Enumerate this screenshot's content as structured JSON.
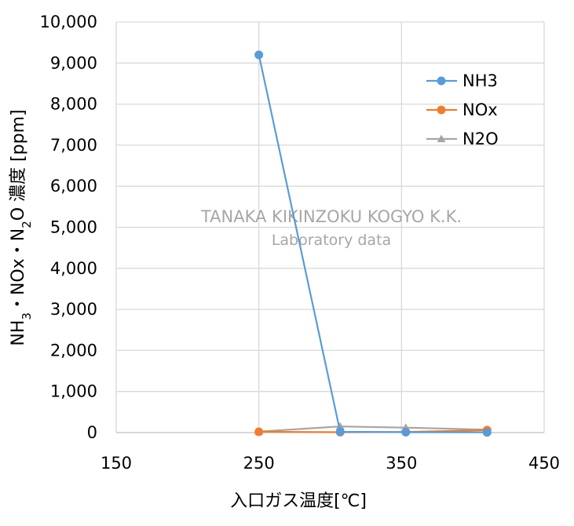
{
  "chart_data": {
    "type": "scatter",
    "xlabel": "入口ガス温度[℃]",
    "ylabel": "NH3・NOx・N2O濃度 [ppm]",
    "ylabel_parts": {
      "a": "NH",
      "a_sub": "3",
      "b": "・NOx・N",
      "b_sub": "2",
      "c": "O 濃度 [ppm]"
    },
    "xlim": [
      150,
      450
    ],
    "ylim": [
      0,
      10000
    ],
    "x_ticks": [
      150,
      250,
      350,
      450
    ],
    "x_tick_labels": [
      "150",
      "250",
      "350",
      "450"
    ],
    "y_ticks": [
      0,
      1000,
      2000,
      3000,
      4000,
      5000,
      6000,
      7000,
      8000,
      9000,
      10000
    ],
    "y_tick_labels": [
      "0",
      "1,000",
      "2,000",
      "3,000",
      "4,000",
      "5,000",
      "6,000",
      "7,000",
      "8,000",
      "9,000",
      "10,000"
    ],
    "grid": true,
    "legend_position": "top-right",
    "series": [
      {
        "name": "NH3",
        "color": "#5b9bd5",
        "marker": "circle",
        "x": [
          250,
          307,
          353,
          410
        ],
        "y": [
          9200,
          20,
          10,
          5
        ]
      },
      {
        "name": "NOx",
        "color": "#ed7d31",
        "marker": "circle",
        "x": [
          250,
          307,
          353,
          410
        ],
        "y": [
          20,
          10,
          15,
          60
        ]
      },
      {
        "name": "N2O",
        "color": "#a5a5a5",
        "marker": "triangle",
        "x": [
          250,
          307,
          353,
          410
        ],
        "y": [
          25,
          150,
          120,
          70
        ]
      }
    ]
  },
  "watermark": {
    "line1": "TANAKA KIKINZOKU KOGYO K.K.",
    "line2": "Laboratory data"
  }
}
